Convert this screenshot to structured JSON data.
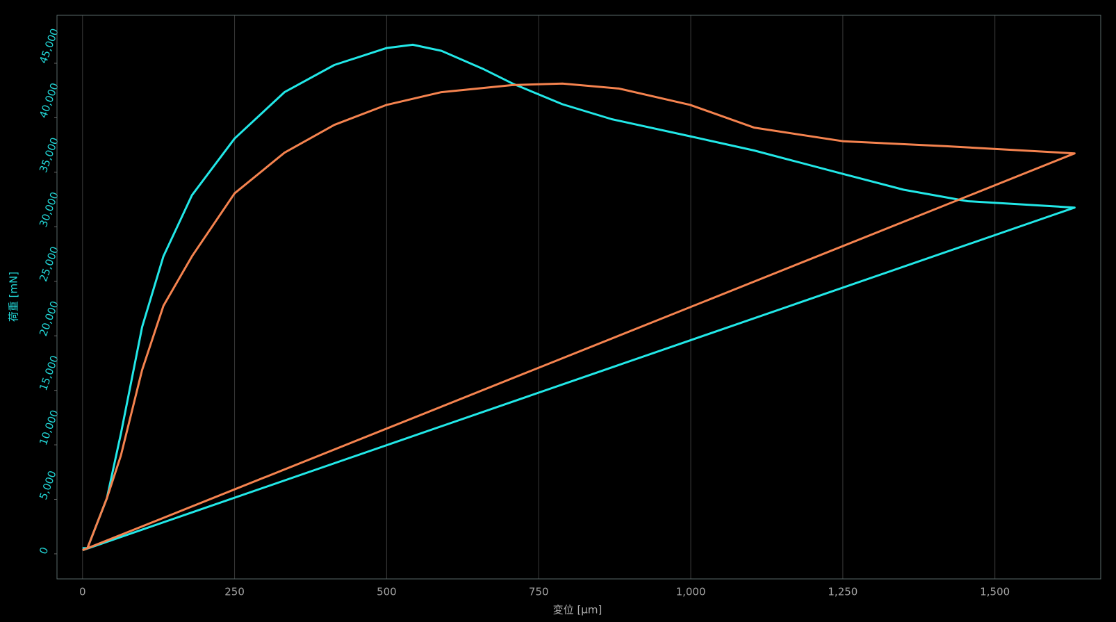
{
  "chart_data": {
    "type": "line",
    "x_label": "変位 [μm]",
    "y_label": "荷重 [mN]",
    "xlim": [
      -42,
      1674
    ],
    "ylim": [
      -2300,
      49400
    ],
    "xticks": [
      0,
      250,
      500,
      750,
      {
        "value": 1000,
        "label": "1,000"
      },
      {
        "value": 1250,
        "label": "1,250"
      },
      {
        "value": 1500,
        "label": "1,500"
      }
    ],
    "yticks": [
      0,
      {
        "value": 5000,
        "label": "5,000"
      },
      {
        "value": 10000,
        "label": "10,000"
      },
      {
        "value": 15000,
        "label": "15,000"
      },
      {
        "value": 20000,
        "label": "20,000"
      },
      {
        "value": 25000,
        "label": "25,000"
      },
      {
        "value": 30000,
        "label": "30,000"
      },
      {
        "value": 35000,
        "label": "35,000"
      },
      {
        "value": 40000,
        "label": "40,000"
      },
      {
        "value": 45000,
        "label": "45,000"
      }
    ],
    "grid": true,
    "series": [
      {
        "color": "#22e8e8",
        "x": [
          0,
          8,
          40,
          63,
          98,
          133,
          180,
          250,
          332,
          414,
          500,
          543,
          590,
          660,
          707,
          789,
          870,
          999,
          1104,
          1251,
          1350,
          1455,
          1631,
          0
        ],
        "values": [
          520,
          520,
          5100,
          11000,
          20800,
          27300,
          32900,
          38100,
          42350,
          44840,
          46400,
          46700,
          46140,
          44440,
          43140,
          41240,
          39870,
          38300,
          37000,
          34840,
          33400,
          32350,
          31760,
          330
        ]
      },
      {
        "color": "#f5834f",
        "x": [
          0,
          8,
          40,
          63,
          98,
          133,
          180,
          250,
          332,
          414,
          500,
          590,
          707,
          789,
          882,
          999,
          1104,
          1251,
          1420,
          1631,
          0
        ],
        "values": [
          330,
          520,
          5100,
          9000,
          16860,
          22750,
          27300,
          33070,
          36800,
          39350,
          41180,
          42350,
          43000,
          43140,
          42680,
          41180,
          39100,
          37840,
          37390,
          36730,
          330
        ]
      }
    ]
  }
}
